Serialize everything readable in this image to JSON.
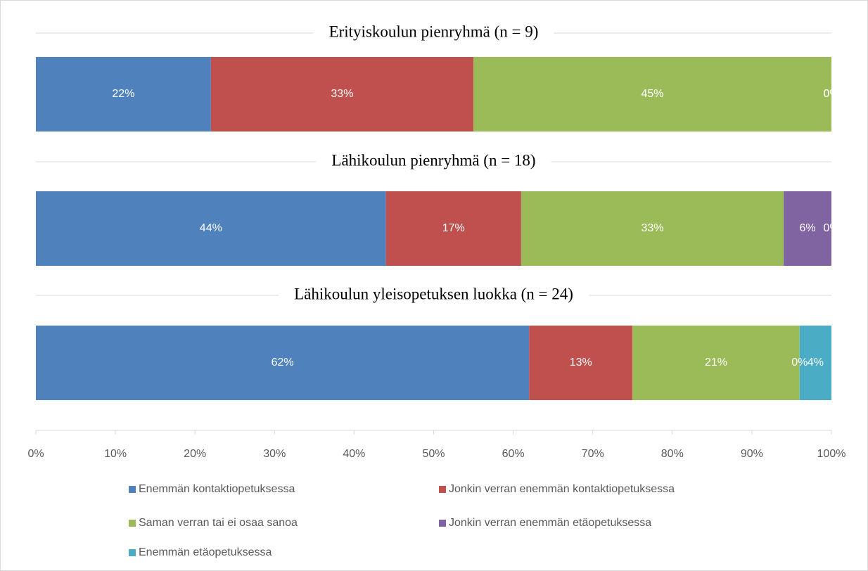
{
  "chart_data": {
    "type": "stacked-barh",
    "categories": [
      "Erityiskoulun pienryhmä (n = 9)",
      "Lähikoulun pienryhmä (n = 18)",
      "Lähikoulun yleisopetuksen luokka (n = 24)"
    ],
    "series": [
      {
        "name": "Enemmän kontaktiopetuksessa",
        "color": "#4f81bd",
        "values": [
          22,
          44,
          62
        ],
        "value_labels": [
          "22%",
          "44%",
          "62%"
        ]
      },
      {
        "name": "Jonkin verran enemmän kontaktiopetuksessa",
        "color": "#c0504d",
        "values": [
          33,
          17,
          13
        ],
        "value_labels": [
          "33%",
          "17%",
          "13%"
        ]
      },
      {
        "name": "Saman verran tai ei osaa sanoa",
        "color": "#9bbb59",
        "values": [
          45,
          33,
          21
        ],
        "value_labels": [
          "45%",
          "33%",
          "21%"
        ]
      },
      {
        "name": "Jonkin verran enemmän etäopetuksessa",
        "color": "#8064a2",
        "values": [
          0,
          6,
          0
        ],
        "value_labels": [
          "0%",
          "6%",
          "0%"
        ]
      },
      {
        "name": "Enemmän etäopetuksessa",
        "color": "#4bacc6",
        "values": [
          0,
          0,
          4
        ],
        "value_labels": [
          "0%",
          "0%",
          "4%"
        ]
      }
    ],
    "xlim": [
      0,
      100
    ],
    "xticks": [
      {
        "value": 0,
        "label": "0%"
      },
      {
        "value": 10,
        "label": "10%"
      },
      {
        "value": 20,
        "label": "20%"
      },
      {
        "value": 30,
        "label": "30%"
      },
      {
        "value": 40,
        "label": "40%"
      },
      {
        "value": 50,
        "label": "50%"
      },
      {
        "value": 60,
        "label": "60%"
      },
      {
        "value": 70,
        "label": "70%"
      },
      {
        "value": 80,
        "label": "80%"
      },
      {
        "value": 90,
        "label": "90%"
      },
      {
        "value": 100,
        "label": "100%"
      }
    ],
    "legend": "bottom"
  }
}
